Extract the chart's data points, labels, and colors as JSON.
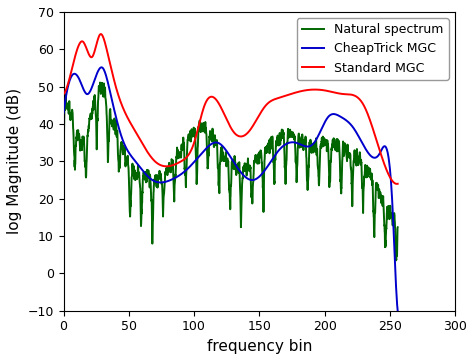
{
  "title": "",
  "xlabel": "frequency bin",
  "ylabel": "log Magnitude (dB)",
  "xlim": [
    0,
    300
  ],
  "ylim": [
    -10,
    70
  ],
  "xticks": [
    0,
    50,
    100,
    150,
    200,
    250,
    300
  ],
  "yticks": [
    -10,
    0,
    10,
    20,
    30,
    40,
    50,
    60,
    70
  ],
  "legend": [
    "Standard MGC",
    "CheapTrick MGC",
    "Natural spectrum"
  ],
  "red_color": "#ff0000",
  "blue_color": "#0000cc",
  "green_color": "#006600",
  "linewidth": 1.4,
  "figsize": [
    4.74,
    3.61
  ],
  "dpi": 100
}
